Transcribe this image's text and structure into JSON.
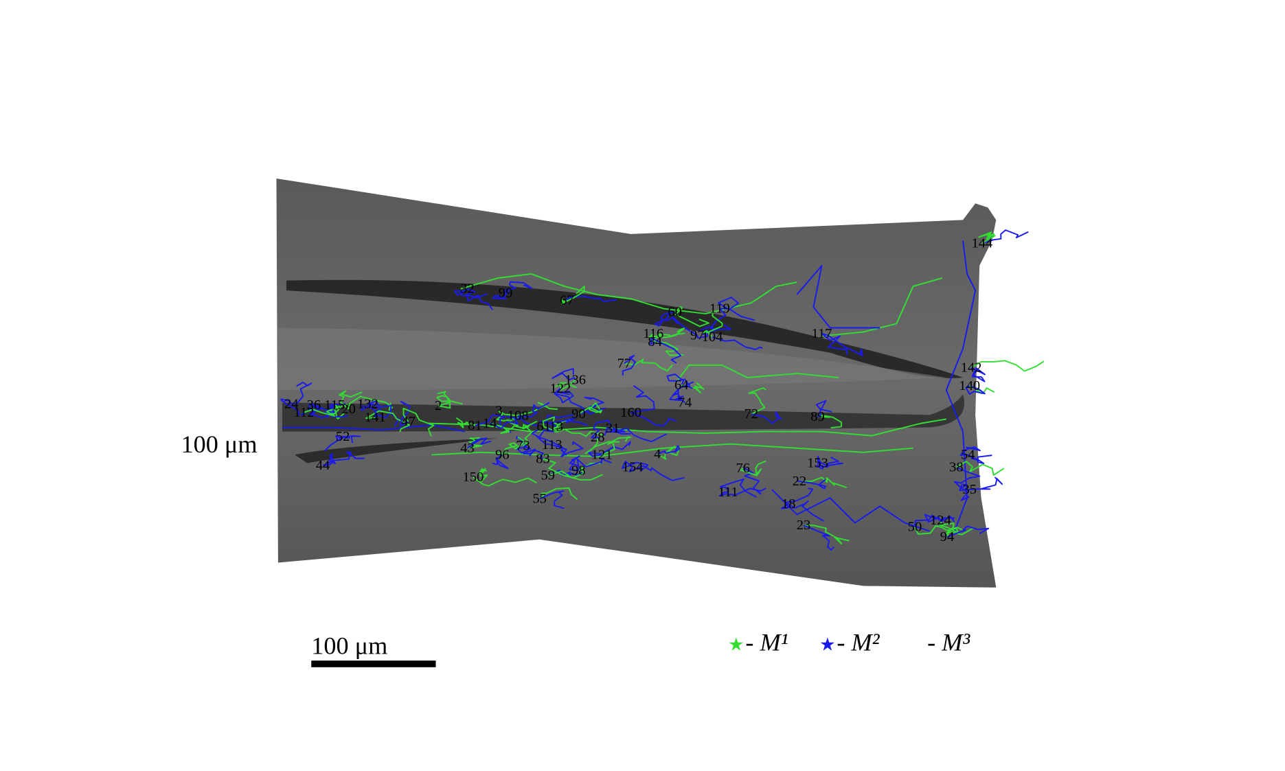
{
  "left_label": "100 μm",
  "scale_bar": {
    "label": "100 μm"
  },
  "legend": {
    "items": [
      "- M¹",
      "- M²",
      "- M³"
    ]
  },
  "track_labels": [
    "32",
    "99",
    "67",
    "60",
    "119",
    "116",
    "84",
    "97",
    "104",
    "117",
    "144",
    "77",
    "142",
    "64",
    "136",
    "122",
    "140",
    "2",
    "3",
    "108",
    "24",
    "36",
    "115",
    "20",
    "132",
    "141",
    "74",
    "72",
    "89",
    "160",
    "90",
    "81",
    "14",
    "61",
    "13",
    "31",
    "47",
    "44",
    "52",
    "111",
    "150",
    "55",
    "59",
    "98",
    "121",
    "154",
    "113",
    "73",
    "96",
    "83",
    "43",
    "76",
    "153",
    "22",
    "18",
    "23",
    "35",
    "38",
    "54",
    "124",
    "94",
    "50",
    "112",
    "28",
    "4"
  ]
}
